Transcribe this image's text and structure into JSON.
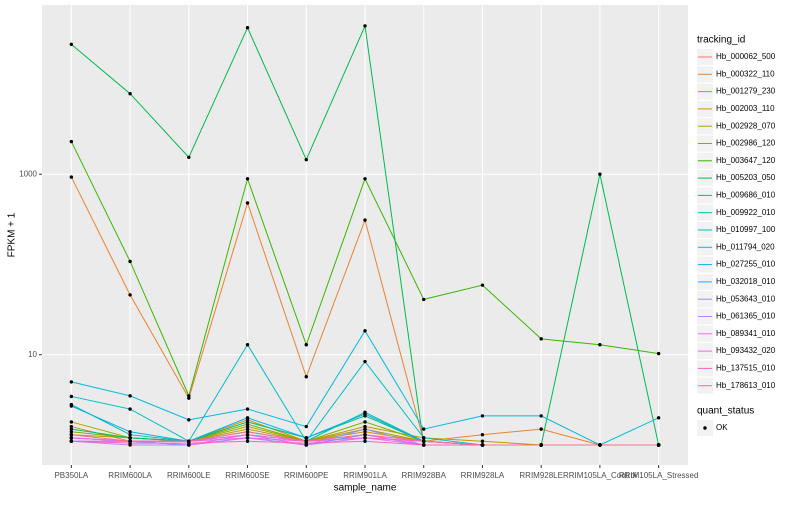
{
  "chart_data": {
    "type": "line",
    "x_label": "sample_name",
    "y_label": "FPKM + 1",
    "log_scale": true,
    "grid": true,
    "categories": [
      "PB350LA",
      "RRIM600LA",
      "RRIM600LE",
      "RRIM600SE",
      "RRIM600PE",
      "RRIM901LA",
      "RRIM928BA",
      "RRIM928LA",
      "RRIM928LE",
      "RRIM105LA_Control",
      "RRIM105LA_Stressed"
    ],
    "ylim": [
      0.6,
      75000
    ],
    "yticks": [
      10,
      1000
    ],
    "legend_title": "tracking_id",
    "series": [
      {
        "name": "Hb_000062_500",
        "color": "#F8766D",
        "values": [
          1.2,
          1.1,
          1.1,
          1.3,
          1.1,
          1.2,
          1.1,
          1,
          1,
          1,
          1
        ]
      },
      {
        "name": "Hb_000322_110",
        "color": "#EA8331",
        "values": [
          930,
          46,
          3.3,
          480,
          5.7,
          310,
          1.1,
          1.3,
          1.5,
          1,
          1
        ]
      },
      {
        "name": "Hb_001279_230",
        "color": "#D89000",
        "values": [
          1.6,
          1.1,
          1.1,
          1.9,
          1.1,
          1.4,
          1.1,
          1,
          1,
          1,
          1
        ]
      },
      {
        "name": "Hb_002003_110",
        "color": "#C09B00",
        "values": [
          1.3,
          1.2,
          1.1,
          1.5,
          1.1,
          1.6,
          1.2,
          1.1,
          1,
          1,
          1
        ]
      },
      {
        "name": "Hb_002928_070",
        "color": "#A3A500",
        "values": [
          1.8,
          1.2,
          1.1,
          1.6,
          1.1,
          1.5,
          1.1,
          1,
          1,
          1,
          1
        ]
      },
      {
        "name": "Hb_002986_120",
        "color": "#7CAE00",
        "values": [
          1.4,
          1.2,
          1.1,
          1.7,
          1.1,
          1.8,
          1.1,
          1,
          1,
          1,
          1
        ]
      },
      {
        "name": "Hb_003647_120",
        "color": "#39B600",
        "values": [
          2300,
          108,
          3.5,
          890,
          12.9,
          890,
          41,
          59,
          15,
          12.9,
          10.3
        ]
      },
      {
        "name": "Hb_005203_050",
        "color": "#00BB4E",
        "values": [
          27500,
          7800,
          1540,
          42000,
          1450,
          44000,
          1,
          1,
          1,
          1000,
          1
        ]
      },
      {
        "name": "Hb_009686_010",
        "color": "#00BF7D",
        "values": [
          1.5,
          1.2,
          1.1,
          1.8,
          1.2,
          2.1,
          1.1,
          1,
          1,
          1,
          1
        ]
      },
      {
        "name": "Hb_009922_010",
        "color": "#00C1A3",
        "values": [
          2.8,
          1.3,
          1.1,
          1.4,
          1.1,
          2.3,
          1.1,
          1,
          1,
          1,
          1
        ]
      },
      {
        "name": "Hb_010997_100",
        "color": "#00BFC4",
        "values": [
          3.45,
          2.5,
          1.1,
          12.9,
          1.1,
          8.4,
          1.2,
          1,
          1,
          1,
          1
        ]
      },
      {
        "name": "Hb_011794_020",
        "color": "#00BAE0",
        "values": [
          5,
          3.5,
          1.9,
          2.5,
          1.6,
          18.4,
          1.5,
          2.1,
          2.1,
          1,
          2
        ]
      },
      {
        "name": "Hb_027255_010",
        "color": "#00B0F6",
        "values": [
          2.7,
          1.4,
          1.1,
          2,
          1.2,
          2.2,
          1.1,
          1,
          1,
          1,
          1
        ]
      },
      {
        "name": "Hb_032018_010",
        "color": "#35A2FF",
        "values": [
          1.1,
          1.1,
          1,
          1.2,
          1,
          1.3,
          1,
          1,
          1,
          1,
          1
        ]
      },
      {
        "name": "Hb_053643_010",
        "color": "#9590FF",
        "values": [
          1.2,
          1.1,
          1,
          1.3,
          1,
          1.5,
          1,
          1,
          1,
          1,
          1
        ]
      },
      {
        "name": "Hb_061365_010",
        "color": "#C77CFF",
        "values": [
          1.1,
          1,
          1,
          1.2,
          1,
          1.2,
          1,
          1,
          1,
          1,
          1
        ]
      },
      {
        "name": "Hb_089341_010",
        "color": "#E76BF3",
        "values": [
          1.2,
          1.1,
          1.1,
          1.3,
          1.1,
          1.3,
          1,
          1,
          1,
          1,
          1
        ]
      },
      {
        "name": "Hb_093432_020",
        "color": "#FA62DB",
        "values": [
          1.1,
          1.1,
          1.1,
          1.2,
          1.1,
          1.2,
          1.1,
          1,
          1,
          1,
          1
        ]
      },
      {
        "name": "Hb_137515_010",
        "color": "#FF62BC",
        "values": [
          1.1,
          1.05,
          1.05,
          1.1,
          1.05,
          1.1,
          1,
          1,
          1,
          1,
          1
        ]
      },
      {
        "name": "Hb_178613_010",
        "color": "#FF6C91",
        "values": [
          1.3,
          1.1,
          1.1,
          1.4,
          1.1,
          1.3,
          1.1,
          1,
          1,
          1,
          1
        ]
      }
    ],
    "quant_status": {
      "title": "quant_status",
      "labels": [
        "OK"
      ]
    }
  }
}
